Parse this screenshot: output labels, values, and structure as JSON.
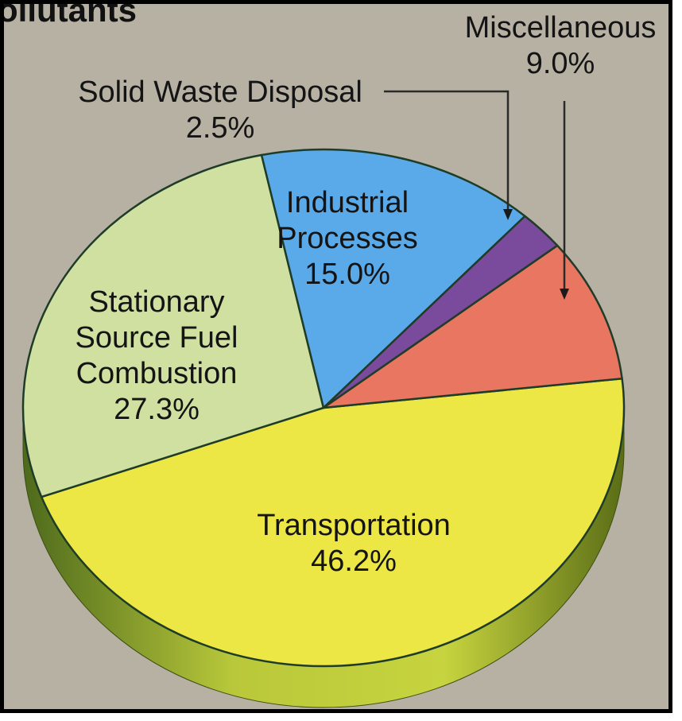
{
  "chart_data": {
    "type": "pie",
    "title_fragment": "ollutants",
    "unit": "%",
    "slices": [
      {
        "label_lines": [
          "Transportation"
        ],
        "value": 46.2,
        "value_text": "46.2%",
        "color": "#ece744"
      },
      {
        "label_lines": [
          "Stationary",
          "Source Fuel",
          "Combustion"
        ],
        "value": 27.3,
        "value_text": "27.3%",
        "color": "#cfe0a1"
      },
      {
        "label_lines": [
          "Industrial",
          "Processes"
        ],
        "value": 15.0,
        "value_text": "15.0%",
        "color": "#5aaaea"
      },
      {
        "label_lines": [
          "Solid Waste Disposal"
        ],
        "value": 2.5,
        "value_text": "2.5%",
        "color": "#7a4a9c"
      },
      {
        "label_lines": [
          "Miscellaneous"
        ],
        "value": 9.0,
        "value_text": "9.0%",
        "color": "#e97660"
      }
    ],
    "start_angle_deg": -6.5,
    "direction": "clockwise",
    "style": "3d-tilted-pie",
    "side_color": "#9fb02e",
    "legend": "none"
  }
}
